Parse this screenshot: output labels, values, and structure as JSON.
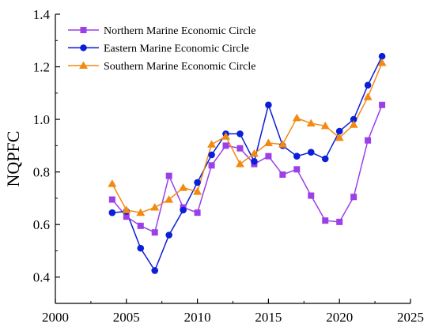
{
  "chart_data": {
    "type": "line",
    "xlabel": "",
    "ylabel": "NQPFC",
    "xlim": [
      2000,
      2025
    ],
    "ylim": [
      0.3,
      1.4
    ],
    "x_ticks": [
      2000,
      2005,
      2010,
      2015,
      2020,
      2025
    ],
    "y_ticks": [
      0.4,
      0.6,
      0.8,
      1.0,
      1.2,
      1.4
    ],
    "x_tick_labels": [
      "2000",
      "2005",
      "2010",
      "2015",
      "2020",
      "2025"
    ],
    "y_tick_labels": [
      "0.4",
      "0.6",
      "0.8",
      "1.0",
      "1.2",
      "1.4"
    ],
    "grid": false,
    "legend_position": "top-left",
    "x": [
      2004,
      2005,
      2006,
      2007,
      2008,
      2009,
      2010,
      2011,
      2012,
      2013,
      2014,
      2015,
      2016,
      2017,
      2018,
      2019,
      2020,
      2021,
      2022,
      2023
    ],
    "series": [
      {
        "name": "Northern Marine Economic Circle",
        "color": "#9b3fe8",
        "marker": "square",
        "values": [
          0.695,
          0.63,
          0.595,
          0.57,
          0.785,
          0.665,
          0.645,
          0.825,
          0.9,
          0.89,
          0.83,
          0.86,
          0.79,
          0.81,
          0.71,
          0.615,
          0.61,
          0.705,
          0.92,
          1.055
        ]
      },
      {
        "name": "Eastern Marine Economic Circle",
        "color": "#0b1fd6",
        "marker": "circle",
        "values": [
          0.645,
          0.65,
          0.51,
          0.425,
          0.56,
          0.655,
          0.76,
          0.865,
          0.945,
          0.945,
          0.84,
          1.055,
          0.9,
          0.86,
          0.875,
          0.85,
          0.955,
          1.0,
          1.13,
          1.24
        ]
      },
      {
        "name": "Southern Marine Economic Circle",
        "color": "#f28a12",
        "marker": "triangle",
        "values": [
          0.755,
          0.655,
          0.645,
          0.665,
          0.695,
          0.74,
          0.725,
          0.905,
          0.935,
          0.83,
          0.87,
          0.91,
          0.905,
          1.005,
          0.985,
          0.975,
          0.93,
          0.98,
          1.085,
          1.215
        ]
      }
    ]
  }
}
